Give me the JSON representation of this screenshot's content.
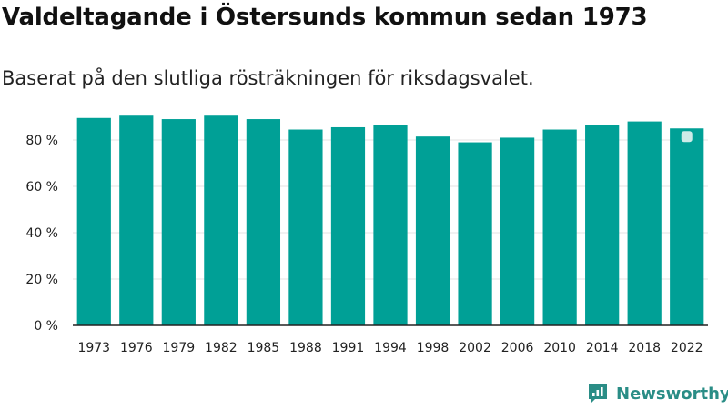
{
  "title": "Valdeltagande i Östersunds kommun sedan 1973",
  "subtitle": "Baserat på den slutliga rösträkningen för riksdagsvalet.",
  "brand": {
    "name": "Newsworthy",
    "logo_icon": "bar-chart-bubble-icon"
  },
  "colors": {
    "bar": "#00a096",
    "grid": "#e3e3e3",
    "axis": "#222222",
    "brand": "#2a8d86",
    "marker": "#cdebe8"
  },
  "chart_data": {
    "type": "bar",
    "categories": [
      "1973",
      "1976",
      "1979",
      "1982",
      "1985",
      "1988",
      "1991",
      "1994",
      "1998",
      "2002",
      "2006",
      "2010",
      "2014",
      "2018",
      "2022"
    ],
    "values": [
      89.5,
      90.5,
      89,
      90.5,
      89,
      84.5,
      85.5,
      86.5,
      81.5,
      79,
      81,
      84.5,
      86.5,
      88,
      85
    ],
    "ylim": [
      0,
      100
    ],
    "yticks": [
      0,
      20,
      40,
      60,
      80
    ],
    "ytick_labels": [
      "0 %",
      "20 %",
      "40 %",
      "60 %",
      "80 %"
    ],
    "xlabel": "",
    "ylabel": "",
    "highlight_category": "2022",
    "grid": true
  }
}
